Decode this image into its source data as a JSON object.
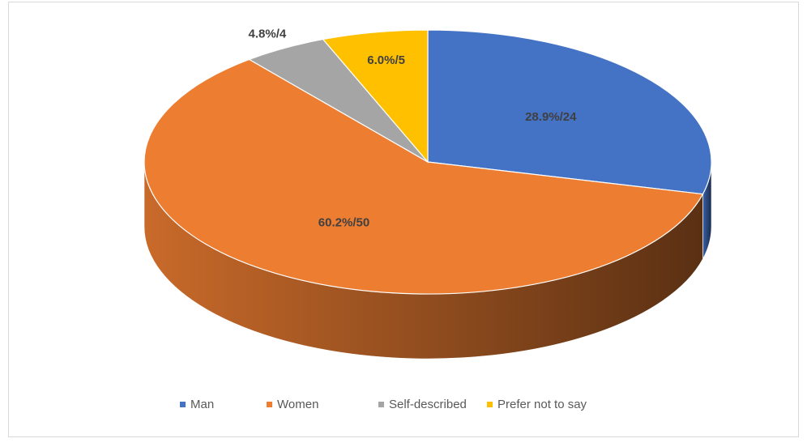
{
  "chart_data": {
    "type": "pie",
    "categories": [
      "Man",
      "Women",
      "Self-described",
      "Prefer not to say"
    ],
    "values": [
      24,
      50,
      4,
      5
    ],
    "value_labels": [
      "28.9%/24",
      "60.2%/50",
      "4.8%/4",
      "6.0%/5"
    ],
    "colors": [
      "#4472c4",
      "#ed7d31",
      "#a5a5a5",
      "#ffc000"
    ],
    "legend": "bottom"
  }
}
